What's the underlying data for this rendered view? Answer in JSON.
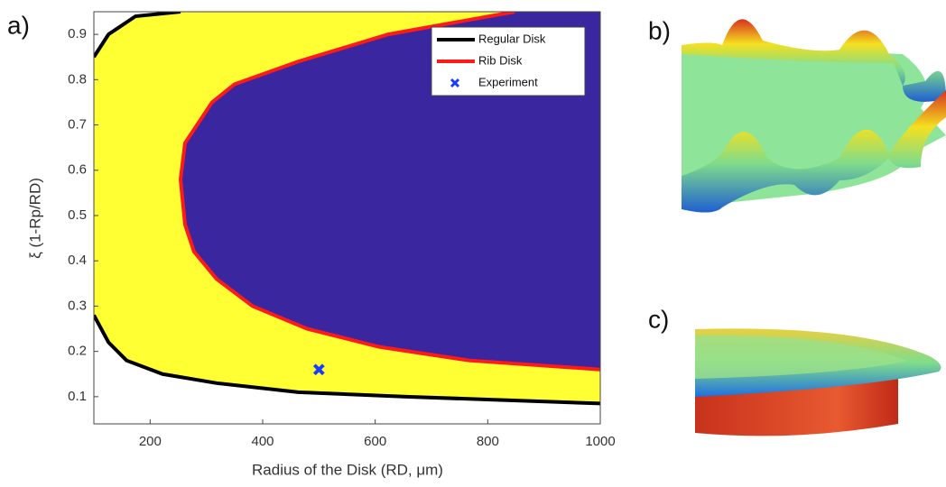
{
  "chart_data": {
    "type": "region-lines",
    "xlabel": "Radius of the Disk (RD, μm)",
    "ylabel": "ξ (1-Rp/RD)",
    "xlim": [
      100,
      1000
    ],
    "ylim": [
      0.04,
      0.95
    ],
    "xticks": [
      200,
      400,
      600,
      800,
      1000
    ],
    "yticks": [
      0.1,
      0.2,
      0.3,
      0.4,
      0.5,
      0.6,
      0.7,
      0.8,
      0.9
    ],
    "legend": "upper right",
    "series": [
      {
        "name": "Regular Disk",
        "color": "#000000",
        "fill": "#ffff33",
        "branches": [
          {
            "x": [
              100,
              126,
              174,
              254
            ],
            "values": [
              0.85,
              0.9,
              0.94,
              0.95
            ]
          },
          {
            "x": [
              100,
              126,
              158,
              222,
              318,
              463,
              655,
              1000
            ],
            "values": [
              0.28,
              0.22,
              0.18,
              0.15,
              0.13,
              0.11,
              0.1,
              0.085
            ]
          }
        ]
      },
      {
        "name": "Rib Disk",
        "color": "#ff1a1a",
        "fill": "#3a27a0",
        "branches": [
          {
            "x": [
              848,
              623,
              463,
              350,
              310,
              294,
              262,
              254,
              262,
              278,
              318,
              382,
              479,
              607,
              767,
              1000
            ],
            "values": [
              0.95,
              0.9,
              0.84,
              0.79,
              0.75,
              0.72,
              0.66,
              0.58,
              0.48,
              0.42,
              0.36,
              0.3,
              0.25,
              0.21,
              0.18,
              0.16
            ]
          }
        ]
      },
      {
        "name": "Experiment",
        "color": "#1a3cff",
        "marker": "x",
        "x": [
          500
        ],
        "values": [
          0.16
        ]
      }
    ],
    "panel_labels": [
      "a)",
      "b)",
      "c)"
    ]
  }
}
